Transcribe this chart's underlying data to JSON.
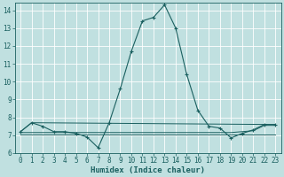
{
  "xlabel": "Humidex (Indice chaleur)",
  "bg_color": "#c0e0e0",
  "grid_color": "#e8f4f4",
  "line_color": "#1a6060",
  "xlim": [
    -0.5,
    23.5
  ],
  "ylim": [
    6,
    14.4
  ],
  "yticks": [
    6,
    7,
    8,
    9,
    10,
    11,
    12,
    13,
    14
  ],
  "xticks": [
    0,
    1,
    2,
    3,
    4,
    5,
    6,
    7,
    8,
    9,
    10,
    11,
    12,
    13,
    14,
    15,
    16,
    17,
    18,
    19,
    20,
    21,
    22,
    23
  ],
  "series": [
    {
      "x": [
        0,
        1,
        2,
        3,
        4,
        5,
        6,
        7,
        8,
        9,
        10,
        11,
        12,
        13,
        14,
        15,
        16,
        17,
        18,
        19,
        20,
        21,
        22,
        23
      ],
      "y": [
        7.2,
        7.7,
        7.5,
        7.2,
        7.2,
        7.1,
        6.9,
        6.3,
        7.7,
        9.6,
        11.7,
        13.4,
        13.6,
        14.3,
        13.0,
        10.4,
        8.4,
        7.5,
        7.4,
        6.85,
        7.1,
        7.3,
        7.6,
        7.6
      ],
      "marker": true
    },
    {
      "x": [
        0,
        1,
        23
      ],
      "y": [
        7.2,
        7.7,
        7.6
      ],
      "marker": false
    },
    {
      "x": [
        0,
        19,
        21,
        22,
        23
      ],
      "y": [
        7.15,
        7.15,
        7.25,
        7.55,
        7.55
      ],
      "marker": false
    },
    {
      "x": [
        0,
        23
      ],
      "y": [
        7.05,
        7.05
      ],
      "marker": false
    }
  ]
}
